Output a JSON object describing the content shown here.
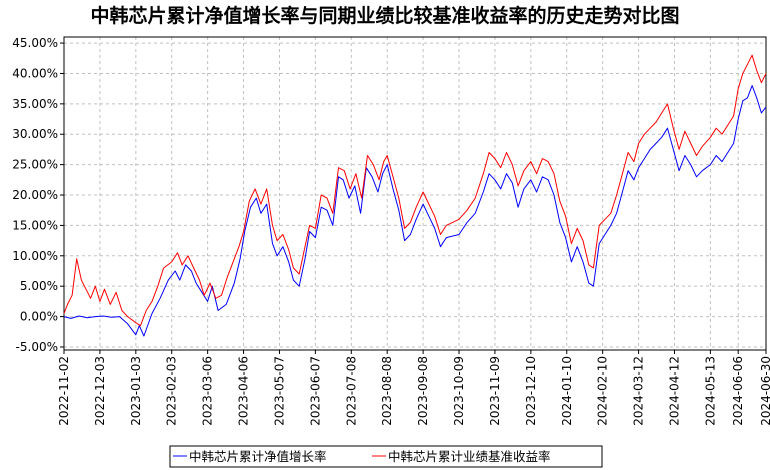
{
  "chart_data": {
    "type": "line",
    "title": "中韩芯片累计净值增长率与同期业绩比较基准收益率的历史走势对比图",
    "xlabel": "",
    "ylabel": "",
    "x_ticks": [
      "2022-11-02",
      "2022-12-03",
      "2023-01-03",
      "2023-02-03",
      "2023-03-06",
      "2023-04-06",
      "2023-05-07",
      "2023-06-07",
      "2023-07-08",
      "2023-08-08",
      "2023-09-08",
      "2023-10-09",
      "2023-11-09",
      "2023-12-10",
      "2024-01-10",
      "2024-02-10",
      "2024-03-12",
      "2024-04-12",
      "2024-05-13",
      "2024-06-06",
      "2024-06-30"
    ],
    "y_ticks": [
      "-5.00%",
      "0.00%",
      "5.00%",
      "10.00%",
      "15.00%",
      "20.00%",
      "25.00%",
      "30.00%",
      "35.00%",
      "40.00%",
      "45.00%"
    ],
    "ylim": [
      -5.5,
      46
    ],
    "grid": true,
    "legend_position": "bottom-center",
    "series": [
      {
        "name": "中韩芯片累计净值增长率",
        "color": "#0000ff",
        "points": [
          [
            "2022-11-02",
            0.0
          ],
          [
            "2022-11-08",
            -0.3
          ],
          [
            "2022-11-15",
            0.1
          ],
          [
            "2022-11-22",
            -0.2
          ],
          [
            "2022-11-29",
            0.0
          ],
          [
            "2022-12-06",
            0.1
          ],
          [
            "2022-12-13",
            -0.1
          ],
          [
            "2022-12-20",
            0.0
          ],
          [
            "2022-12-27",
            -1.2
          ],
          [
            "2023-01-03",
            -3.0
          ],
          [
            "2023-01-06",
            -1.5
          ],
          [
            "2023-01-10",
            -3.2
          ],
          [
            "2023-01-17",
            0.5
          ],
          [
            "2023-01-24",
            3.0
          ],
          [
            "2023-01-31",
            6.0
          ],
          [
            "2023-02-06",
            7.5
          ],
          [
            "2023-02-10",
            6.0
          ],
          [
            "2023-02-15",
            8.5
          ],
          [
            "2023-02-20",
            7.5
          ],
          [
            "2023-02-24",
            5.5
          ],
          [
            "2023-03-01",
            4.0
          ],
          [
            "2023-03-06",
            2.5
          ],
          [
            "2023-03-10",
            5.0
          ],
          [
            "2023-03-15",
            1.0
          ],
          [
            "2023-03-22",
            2.0
          ],
          [
            "2023-03-29",
            5.5
          ],
          [
            "2023-04-03",
            9.5
          ],
          [
            "2023-04-07",
            14.0
          ],
          [
            "2023-04-12",
            18.0
          ],
          [
            "2023-04-17",
            19.5
          ],
          [
            "2023-04-21",
            17.0
          ],
          [
            "2023-04-26",
            18.5
          ],
          [
            "2023-05-01",
            12.0
          ],
          [
            "2023-05-05",
            10.0
          ],
          [
            "2023-05-10",
            11.5
          ],
          [
            "2023-05-15",
            9.0
          ],
          [
            "2023-05-19",
            6.0
          ],
          [
            "2023-05-24",
            5.0
          ],
          [
            "2023-05-29",
            9.5
          ],
          [
            "2023-06-02",
            14.0
          ],
          [
            "2023-06-07",
            13.0
          ],
          [
            "2023-06-12",
            18.0
          ],
          [
            "2023-06-17",
            17.5
          ],
          [
            "2023-06-22",
            15.0
          ],
          [
            "2023-06-27",
            23.0
          ],
          [
            "2023-07-01",
            22.5
          ],
          [
            "2023-07-06",
            19.5
          ],
          [
            "2023-07-11",
            21.5
          ],
          [
            "2023-07-16",
            17.0
          ],
          [
            "2023-07-21",
            24.5
          ],
          [
            "2023-07-26",
            23.0
          ],
          [
            "2023-07-31",
            20.5
          ],
          [
            "2023-08-04",
            23.5
          ],
          [
            "2023-08-08",
            25.0
          ],
          [
            "2023-08-13",
            21.0
          ],
          [
            "2023-08-18",
            17.5
          ],
          [
            "2023-08-23",
            12.5
          ],
          [
            "2023-08-28",
            13.5
          ],
          [
            "2023-09-02",
            16.0
          ],
          [
            "2023-09-08",
            18.5
          ],
          [
            "2023-09-13",
            16.5
          ],
          [
            "2023-09-18",
            14.5
          ],
          [
            "2023-09-23",
            11.5
          ],
          [
            "2023-09-28",
            13.0
          ],
          [
            "2023-10-09",
            13.5
          ],
          [
            "2023-10-16",
            15.5
          ],
          [
            "2023-10-23",
            17.0
          ],
          [
            "2023-10-30",
            20.5
          ],
          [
            "2023-11-04",
            23.5
          ],
          [
            "2023-11-09",
            22.5
          ],
          [
            "2023-11-14",
            21.0
          ],
          [
            "2023-11-19",
            23.5
          ],
          [
            "2023-11-24",
            22.0
          ],
          [
            "2023-11-29",
            18.0
          ],
          [
            "2023-12-04",
            21.0
          ],
          [
            "2023-12-10",
            22.5
          ],
          [
            "2023-12-15",
            20.5
          ],
          [
            "2023-12-20",
            23.0
          ],
          [
            "2023-12-25",
            22.5
          ],
          [
            "2023-12-30",
            20.0
          ],
          [
            "2024-01-04",
            15.5
          ],
          [
            "2024-01-09",
            13.0
          ],
          [
            "2024-01-14",
            9.0
          ],
          [
            "2024-01-19",
            11.5
          ],
          [
            "2024-01-24",
            9.0
          ],
          [
            "2024-01-29",
            5.5
          ],
          [
            "2024-02-02",
            5.0
          ],
          [
            "2024-02-07",
            12.0
          ],
          [
            "2024-02-12",
            13.5
          ],
          [
            "2024-02-17",
            15.0
          ],
          [
            "2024-02-22",
            17.0
          ],
          [
            "2024-02-27",
            20.5
          ],
          [
            "2024-03-03",
            24.0
          ],
          [
            "2024-03-08",
            22.5
          ],
          [
            "2024-03-12",
            24.5
          ],
          [
            "2024-03-17",
            26.0
          ],
          [
            "2024-03-22",
            27.5
          ],
          [
            "2024-03-27",
            28.5
          ],
          [
            "2024-04-01",
            29.5
          ],
          [
            "2024-04-06",
            31.0
          ],
          [
            "2024-04-11",
            27.5
          ],
          [
            "2024-04-16",
            24.0
          ],
          [
            "2024-04-21",
            26.5
          ],
          [
            "2024-04-26",
            25.0
          ],
          [
            "2024-05-01",
            23.0
          ],
          [
            "2024-05-06",
            24.0
          ],
          [
            "2024-05-13",
            25.0
          ],
          [
            "2024-05-18",
            26.5
          ],
          [
            "2024-05-23",
            25.5
          ],
          [
            "2024-05-28",
            27.0
          ],
          [
            "2024-06-02",
            28.5
          ],
          [
            "2024-06-06",
            32.5
          ],
          [
            "2024-06-10",
            35.5
          ],
          [
            "2024-06-14",
            36.0
          ],
          [
            "2024-06-18",
            38.0
          ],
          [
            "2024-06-22",
            36.0
          ],
          [
            "2024-06-26",
            33.5
          ],
          [
            "2024-06-30",
            34.5
          ]
        ]
      },
      {
        "name": "中韩芯片累计业绩基准收益率",
        "color": "#ff0000",
        "points": [
          [
            "2022-11-02",
            0.5
          ],
          [
            "2022-11-05",
            2.0
          ],
          [
            "2022-11-09",
            3.5
          ],
          [
            "2022-11-13",
            9.5
          ],
          [
            "2022-11-17",
            6.0
          ],
          [
            "2022-11-21",
            4.5
          ],
          [
            "2022-11-25",
            3.0
          ],
          [
            "2022-11-29",
            5.0
          ],
          [
            "2022-12-03",
            2.5
          ],
          [
            "2022-12-07",
            4.5
          ],
          [
            "2022-12-12",
            2.0
          ],
          [
            "2022-12-17",
            4.0
          ],
          [
            "2022-12-22",
            1.0
          ],
          [
            "2022-12-27",
            0.0
          ],
          [
            "2023-01-03",
            -1.0
          ],
          [
            "2023-01-07",
            -1.5
          ],
          [
            "2023-01-12",
            1.0
          ],
          [
            "2023-01-17",
            2.5
          ],
          [
            "2023-01-22",
            5.0
          ],
          [
            "2023-01-27",
            8.0
          ],
          [
            "2023-02-03",
            9.0
          ],
          [
            "2023-02-08",
            10.5
          ],
          [
            "2023-02-12",
            8.5
          ],
          [
            "2023-02-17",
            10.0
          ],
          [
            "2023-02-22",
            8.0
          ],
          [
            "2023-02-27",
            6.0
          ],
          [
            "2023-03-03",
            3.5
          ],
          [
            "2023-03-08",
            5.5
          ],
          [
            "2023-03-13",
            3.0
          ],
          [
            "2023-03-18",
            3.5
          ],
          [
            "2023-03-23",
            6.5
          ],
          [
            "2023-03-28",
            9.0
          ],
          [
            "2023-04-02",
            11.5
          ],
          [
            "2023-04-06",
            14.0
          ],
          [
            "2023-04-11",
            19.0
          ],
          [
            "2023-04-16",
            21.0
          ],
          [
            "2023-04-21",
            18.5
          ],
          [
            "2023-04-26",
            21.0
          ],
          [
            "2023-05-01",
            15.0
          ],
          [
            "2023-05-05",
            12.5
          ],
          [
            "2023-05-10",
            13.5
          ],
          [
            "2023-05-15",
            11.0
          ],
          [
            "2023-05-19",
            8.0
          ],
          [
            "2023-05-24",
            7.0
          ],
          [
            "2023-05-29",
            11.5
          ],
          [
            "2023-06-02",
            15.0
          ],
          [
            "2023-06-07",
            14.5
          ],
          [
            "2023-06-12",
            20.0
          ],
          [
            "2023-06-17",
            19.5
          ],
          [
            "2023-06-22",
            17.0
          ],
          [
            "2023-06-27",
            24.5
          ],
          [
            "2023-07-02",
            24.0
          ],
          [
            "2023-07-07",
            21.0
          ],
          [
            "2023-07-12",
            23.5
          ],
          [
            "2023-07-17",
            19.5
          ],
          [
            "2023-07-22",
            26.5
          ],
          [
            "2023-07-27",
            25.0
          ],
          [
            "2023-08-01",
            22.5
          ],
          [
            "2023-08-05",
            25.5
          ],
          [
            "2023-08-08",
            26.5
          ],
          [
            "2023-08-13",
            23.0
          ],
          [
            "2023-08-18",
            19.5
          ],
          [
            "2023-08-23",
            14.5
          ],
          [
            "2023-08-28",
            15.5
          ],
          [
            "2023-09-02",
            18.0
          ],
          [
            "2023-09-08",
            20.5
          ],
          [
            "2023-09-13",
            18.5
          ],
          [
            "2023-09-18",
            16.5
          ],
          [
            "2023-09-23",
            13.5
          ],
          [
            "2023-09-28",
            15.0
          ],
          [
            "2023-10-09",
            16.0
          ],
          [
            "2023-10-16",
            17.5
          ],
          [
            "2023-10-23",
            19.5
          ],
          [
            "2023-10-30",
            23.5
          ],
          [
            "2023-11-04",
            27.0
          ],
          [
            "2023-11-09",
            26.0
          ],
          [
            "2023-11-14",
            24.5
          ],
          [
            "2023-11-19",
            27.0
          ],
          [
            "2023-11-24",
            25.0
          ],
          [
            "2023-11-29",
            21.5
          ],
          [
            "2023-12-04",
            24.0
          ],
          [
            "2023-12-10",
            25.5
          ],
          [
            "2023-12-15",
            23.5
          ],
          [
            "2023-12-20",
            26.0
          ],
          [
            "2023-12-25",
            25.5
          ],
          [
            "2023-12-30",
            23.5
          ],
          [
            "2024-01-04",
            19.0
          ],
          [
            "2024-01-09",
            16.5
          ],
          [
            "2024-01-14",
            12.0
          ],
          [
            "2024-01-19",
            14.5
          ],
          [
            "2024-01-24",
            12.5
          ],
          [
            "2024-01-29",
            8.5
          ],
          [
            "2024-02-02",
            8.0
          ],
          [
            "2024-02-07",
            15.0
          ],
          [
            "2024-02-12",
            16.0
          ],
          [
            "2024-02-17",
            17.0
          ],
          [
            "2024-02-22",
            20.0
          ],
          [
            "2024-02-27",
            23.5
          ],
          [
            "2024-03-03",
            27.0
          ],
          [
            "2024-03-08",
            25.5
          ],
          [
            "2024-03-12",
            28.5
          ],
          [
            "2024-03-17",
            30.0
          ],
          [
            "2024-03-22",
            31.0
          ],
          [
            "2024-03-27",
            32.0
          ],
          [
            "2024-04-01",
            33.5
          ],
          [
            "2024-04-06",
            35.0
          ],
          [
            "2024-04-11",
            31.0
          ],
          [
            "2024-04-16",
            27.5
          ],
          [
            "2024-04-21",
            30.5
          ],
          [
            "2024-04-26",
            28.5
          ],
          [
            "2024-05-01",
            26.5
          ],
          [
            "2024-05-06",
            28.0
          ],
          [
            "2024-05-13",
            29.5
          ],
          [
            "2024-05-18",
            31.0
          ],
          [
            "2024-05-23",
            30.0
          ],
          [
            "2024-05-28",
            31.5
          ],
          [
            "2024-06-02",
            33.0
          ],
          [
            "2024-06-06",
            37.5
          ],
          [
            "2024-06-10",
            40.0
          ],
          [
            "2024-06-14",
            41.5
          ],
          [
            "2024-06-18",
            43.0
          ],
          [
            "2024-06-22",
            40.5
          ],
          [
            "2024-06-26",
            38.5
          ],
          [
            "2024-06-30",
            40.0
          ]
        ]
      }
    ]
  }
}
